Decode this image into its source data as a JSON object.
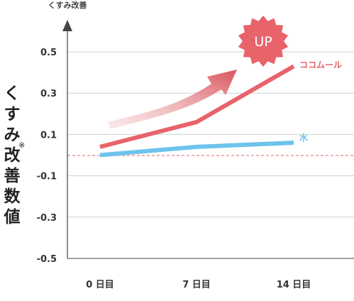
{
  "chart_data": {
    "type": "line",
    "title": "",
    "y_top_label": "くすみ改善",
    "ylabel_chars": [
      "く",
      "す",
      "み",
      "改",
      "善",
      "数",
      "値"
    ],
    "ylabel_mark": "※",
    "categories": [
      "0 日目",
      "7 日目",
      "14 日目"
    ],
    "yticks": [
      "0.5",
      "0.3",
      "0.1",
      "-0.1",
      "-0.3",
      "-0.5"
    ],
    "ylim": [
      -0.5,
      0.5
    ],
    "baseline": 0.0,
    "series": [
      {
        "name": "ココムール",
        "values": [
          0.04,
          0.16,
          0.43
        ],
        "color": "#e8636a"
      },
      {
        "name": "水",
        "values": [
          0.0,
          0.04,
          0.06
        ],
        "color": "#6ec3ec"
      }
    ],
    "badge": "UP",
    "badge_color": "#e8636a",
    "grid": true
  }
}
